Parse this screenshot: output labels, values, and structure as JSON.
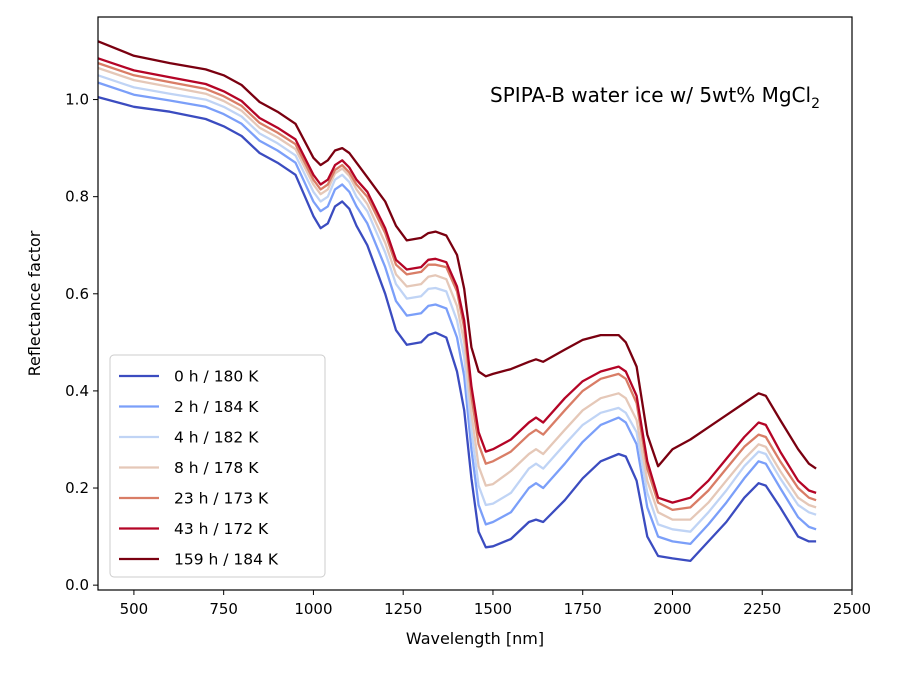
{
  "chart_data": {
    "type": "line",
    "title": "SPIPA-B water ice w/ 5wt% MgCl",
    "title_subscript": "2",
    "xlabel": "Wavelength [nm]",
    "ylabel": "Reflectance factor",
    "xlim": [
      400,
      2500
    ],
    "ylim": [
      -0.01,
      1.17
    ],
    "xticks": [
      500,
      750,
      1000,
      1250,
      1500,
      1750,
      2000,
      2250,
      2500
    ],
    "xtick_labels": [
      "500",
      "750",
      "1000",
      "1250",
      "1500",
      "1750",
      "2000",
      "2250",
      "2500"
    ],
    "yticks": [
      0.0,
      0.2,
      0.4,
      0.6,
      0.8,
      1.0
    ],
    "ytick_labels": [
      "0.0",
      "0.2",
      "0.4",
      "0.6",
      "0.8",
      "1.0"
    ],
    "grid": false,
    "legend_position": "lower-left",
    "x": [
      400,
      500,
      600,
      700,
      750,
      800,
      850,
      900,
      950,
      1000,
      1020,
      1040,
      1060,
      1080,
      1100,
      1120,
      1150,
      1200,
      1230,
      1260,
      1300,
      1320,
      1340,
      1370,
      1400,
      1420,
      1440,
      1460,
      1480,
      1500,
      1550,
      1600,
      1620,
      1640,
      1700,
      1750,
      1800,
      1850,
      1870,
      1900,
      1930,
      1960,
      2000,
      2050,
      2100,
      2150,
      2200,
      2240,
      2260,
      2300,
      2350,
      2380,
      2400
    ],
    "series": [
      {
        "name": "0 h / 180 K",
        "color": "#3b4cc0",
        "values": [
          1.005,
          0.985,
          0.975,
          0.96,
          0.945,
          0.925,
          0.89,
          0.87,
          0.845,
          0.76,
          0.735,
          0.745,
          0.78,
          0.79,
          0.775,
          0.74,
          0.7,
          0.6,
          0.525,
          0.495,
          0.5,
          0.515,
          0.52,
          0.51,
          0.44,
          0.36,
          0.22,
          0.11,
          0.078,
          0.08,
          0.095,
          0.13,
          0.135,
          0.13,
          0.175,
          0.22,
          0.255,
          0.27,
          0.265,
          0.215,
          0.1,
          0.06,
          0.055,
          0.05,
          0.09,
          0.13,
          0.18,
          0.21,
          0.205,
          0.16,
          0.1,
          0.09,
          0.09
        ]
      },
      {
        "name": "2 h / 184 K",
        "color": "#7b9ff9",
        "values": [
          1.035,
          1.01,
          0.998,
          0.985,
          0.97,
          0.95,
          0.915,
          0.895,
          0.87,
          0.79,
          0.77,
          0.78,
          0.815,
          0.825,
          0.81,
          0.78,
          0.745,
          0.655,
          0.585,
          0.555,
          0.56,
          0.575,
          0.578,
          0.57,
          0.51,
          0.43,
          0.28,
          0.165,
          0.125,
          0.13,
          0.15,
          0.2,
          0.21,
          0.2,
          0.25,
          0.295,
          0.33,
          0.345,
          0.335,
          0.29,
          0.16,
          0.1,
          0.09,
          0.085,
          0.125,
          0.17,
          0.22,
          0.255,
          0.25,
          0.2,
          0.14,
          0.12,
          0.115
        ]
      },
      {
        "name": "4 h / 182 K",
        "color": "#c0d4f5",
        "values": [
          1.05,
          1.025,
          1.012,
          1.0,
          0.985,
          0.965,
          0.93,
          0.91,
          0.885,
          0.81,
          0.79,
          0.8,
          0.835,
          0.845,
          0.83,
          0.8,
          0.77,
          0.685,
          0.62,
          0.59,
          0.595,
          0.61,
          0.612,
          0.605,
          0.545,
          0.47,
          0.32,
          0.205,
          0.165,
          0.168,
          0.19,
          0.24,
          0.25,
          0.24,
          0.29,
          0.33,
          0.355,
          0.365,
          0.355,
          0.315,
          0.19,
          0.125,
          0.115,
          0.11,
          0.15,
          0.195,
          0.245,
          0.275,
          0.27,
          0.22,
          0.165,
          0.15,
          0.145
        ]
      },
      {
        "name": "8 h / 178 K",
        "color": "#e5c8b8",
        "values": [
          1.065,
          1.04,
          1.026,
          1.012,
          0.997,
          0.977,
          0.942,
          0.922,
          0.898,
          0.825,
          0.805,
          0.815,
          0.848,
          0.858,
          0.843,
          0.815,
          0.785,
          0.705,
          0.64,
          0.615,
          0.62,
          0.635,
          0.638,
          0.63,
          0.575,
          0.5,
          0.355,
          0.245,
          0.205,
          0.208,
          0.235,
          0.27,
          0.28,
          0.27,
          0.32,
          0.36,
          0.385,
          0.395,
          0.385,
          0.34,
          0.215,
          0.15,
          0.135,
          0.135,
          0.17,
          0.215,
          0.26,
          0.29,
          0.285,
          0.235,
          0.18,
          0.165,
          0.16
        ]
      },
      {
        "name": "23 h / 173 K",
        "color": "#d97d66",
        "values": [
          1.075,
          1.05,
          1.036,
          1.022,
          1.007,
          0.987,
          0.952,
          0.932,
          0.908,
          0.835,
          0.815,
          0.825,
          0.855,
          0.865,
          0.85,
          0.825,
          0.8,
          0.725,
          0.66,
          0.64,
          0.645,
          0.66,
          0.66,
          0.655,
          0.605,
          0.53,
          0.39,
          0.29,
          0.25,
          0.255,
          0.275,
          0.31,
          0.32,
          0.31,
          0.36,
          0.4,
          0.425,
          0.435,
          0.425,
          0.375,
          0.24,
          0.17,
          0.155,
          0.16,
          0.195,
          0.24,
          0.285,
          0.31,
          0.305,
          0.255,
          0.2,
          0.18,
          0.175
        ]
      },
      {
        "name": "43 h / 172 K",
        "color": "#b40426",
        "values": [
          1.085,
          1.06,
          1.046,
          1.032,
          1.017,
          0.997,
          0.962,
          0.942,
          0.918,
          0.845,
          0.825,
          0.835,
          0.865,
          0.875,
          0.86,
          0.835,
          0.81,
          0.735,
          0.67,
          0.65,
          0.655,
          0.67,
          0.672,
          0.665,
          0.615,
          0.545,
          0.41,
          0.315,
          0.275,
          0.28,
          0.3,
          0.335,
          0.345,
          0.335,
          0.385,
          0.42,
          0.44,
          0.45,
          0.44,
          0.39,
          0.255,
          0.18,
          0.17,
          0.18,
          0.215,
          0.26,
          0.305,
          0.335,
          0.33,
          0.275,
          0.215,
          0.195,
          0.19
        ]
      },
      {
        "name": "159 h / 184 K",
        "color": "#7a0010",
        "values": [
          1.12,
          1.09,
          1.075,
          1.062,
          1.05,
          1.03,
          0.995,
          0.975,
          0.95,
          0.88,
          0.865,
          0.875,
          0.895,
          0.9,
          0.89,
          0.87,
          0.84,
          0.79,
          0.74,
          0.71,
          0.715,
          0.725,
          0.728,
          0.72,
          0.68,
          0.61,
          0.49,
          0.44,
          0.43,
          0.435,
          0.445,
          0.46,
          0.465,
          0.46,
          0.485,
          0.505,
          0.515,
          0.515,
          0.5,
          0.45,
          0.31,
          0.245,
          0.28,
          0.3,
          0.325,
          0.35,
          0.375,
          0.395,
          0.39,
          0.34,
          0.28,
          0.25,
          0.24
        ]
      }
    ]
  }
}
